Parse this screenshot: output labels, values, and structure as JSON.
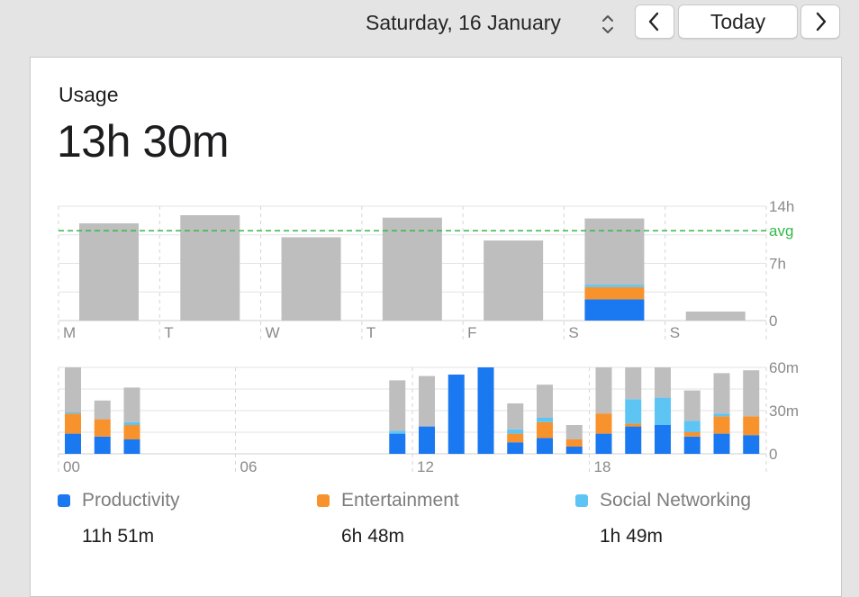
{
  "header": {
    "date_label": "Saturday, 16 January",
    "today_label": "Today",
    "prev_icon": "chevron-left-icon",
    "next_icon": "chevron-right-icon",
    "stepper_icon": "up-down-chevron-icon"
  },
  "usage": {
    "label": "Usage",
    "total": "13h 30m"
  },
  "colors": {
    "productivity": "#1a78f0",
    "entertainment": "#f7922c",
    "social": "#5ec4f4",
    "other": "#bebebe",
    "avg": "#34b94a"
  },
  "legend": [
    {
      "name": "Productivity",
      "value": "11h 51m",
      "color_key": "productivity"
    },
    {
      "name": "Entertainment",
      "value": "6h 48m",
      "color_key": "entertainment"
    },
    {
      "name": "Social Networking",
      "value": "1h 49m",
      "color_key": "social"
    }
  ],
  "chart_data": [
    {
      "type": "bar",
      "stacked": true,
      "unit": "hours",
      "categories": [
        "M",
        "T",
        "W",
        "T",
        "F",
        "S",
        "S"
      ],
      "series": [
        {
          "name": "Productivity",
          "color_key": "productivity",
          "values": [
            0,
            0,
            0,
            0,
            0,
            2.6,
            0
          ]
        },
        {
          "name": "Entertainment",
          "color_key": "entertainment",
          "values": [
            0,
            0,
            0,
            0,
            0,
            1.5,
            0
          ]
        },
        {
          "name": "Social Networking",
          "color_key": "social",
          "values": [
            0,
            0,
            0,
            0,
            0,
            0.3,
            0
          ]
        },
        {
          "color_key": "other",
          "values": [
            11.9,
            12.9,
            10.2,
            12.6,
            9.8,
            8.1,
            1.1
          ]
        }
      ],
      "ylim": [
        0,
        14
      ],
      "y_ticks": [
        {
          "value": 14,
          "label": "14h"
        },
        {
          "value": 7,
          "label": "7h"
        },
        {
          "value": 0,
          "label": "0"
        }
      ],
      "average": {
        "value": 11,
        "label": "avg"
      },
      "grid": true
    },
    {
      "type": "bar",
      "stacked": true,
      "unit": "minutes",
      "hours": [
        0,
        1,
        2,
        3,
        4,
        5,
        6,
        7,
        8,
        9,
        10,
        11,
        12,
        13,
        14,
        15,
        16,
        17,
        18,
        19,
        20,
        21,
        22,
        23
      ],
      "x_tick_labels": [
        {
          "hour": 0,
          "label": "00"
        },
        {
          "hour": 6,
          "label": "06"
        },
        {
          "hour": 12,
          "label": "12"
        },
        {
          "hour": 18,
          "label": "18"
        }
      ],
      "series": [
        {
          "name": "Productivity",
          "color_key": "productivity",
          "values": [
            14,
            12,
            10,
            0,
            0,
            0,
            0,
            0,
            0,
            0,
            0,
            14,
            19,
            55,
            60,
            8,
            11,
            5,
            14,
            19,
            20,
            12,
            14,
            13
          ]
        },
        {
          "name": "Entertainment",
          "color_key": "entertainment",
          "values": [
            14,
            12,
            10,
            0,
            0,
            0,
            0,
            0,
            0,
            0,
            0,
            0,
            0,
            0,
            0,
            6,
            11,
            5,
            14,
            2,
            0,
            3,
            12,
            13
          ]
        },
        {
          "name": "Social Networking",
          "color_key": "social",
          "values": [
            1,
            0,
            2,
            0,
            0,
            0,
            0,
            0,
            0,
            0,
            0,
            2,
            0,
            0,
            0,
            3,
            3,
            0,
            0,
            17,
            19,
            8,
            2,
            0
          ]
        },
        {
          "color_key": "other",
          "values": [
            31,
            13,
            24,
            0,
            0,
            0,
            0,
            0,
            0,
            0,
            0,
            35,
            35,
            0,
            0,
            18,
            23,
            10,
            32,
            22,
            21,
            21,
            28,
            32
          ]
        }
      ],
      "ylim": [
        0,
        60
      ],
      "y_ticks": [
        {
          "value": 60,
          "label": "60m"
        },
        {
          "value": 30,
          "label": "30m"
        },
        {
          "value": 0,
          "label": "0"
        }
      ],
      "grid": true
    }
  ]
}
